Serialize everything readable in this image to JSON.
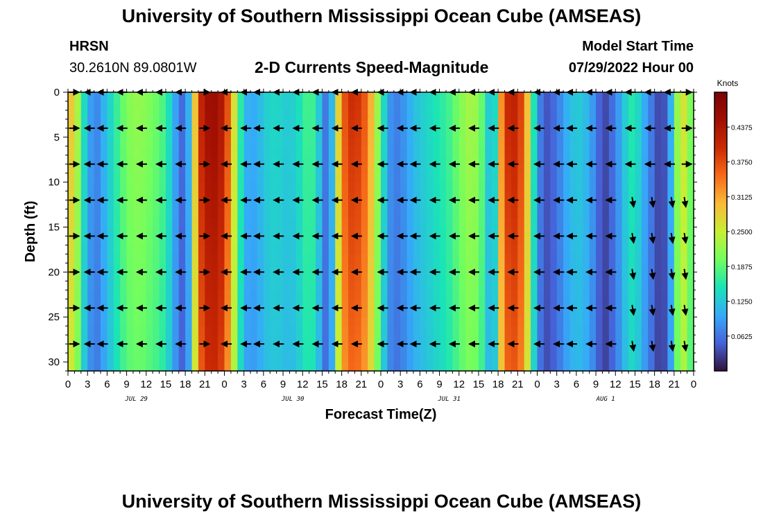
{
  "header": {
    "title": "University of Southern Mississippi Ocean Cube (AMSEAS)",
    "station": "HRSN",
    "coords": "30.2610N  89.0801W",
    "plot_title": "2-D Currents Speed-Magnitude",
    "model_start_label": "Model Start Time",
    "model_start_value": "07/29/2022 Hour 00"
  },
  "footer": {
    "title": "University of Southern Mississippi Ocean Cube (AMSEAS)"
  },
  "chart_data": {
    "type": "heatmap",
    "title": "2-D Currents Speed-Magnitude",
    "xlabel": "Forecast Time(Z)",
    "ylabel": "Depth (ft)",
    "xlim": [
      0,
      96
    ],
    "ylim": [
      31,
      0
    ],
    "x_ticks": [
      "0",
      "3",
      "6",
      "9",
      "12",
      "15",
      "18",
      "21",
      "0",
      "3",
      "6",
      "9",
      "12",
      "15",
      "18",
      "21",
      "0",
      "3",
      "6",
      "9",
      "12",
      "15",
      "18",
      "21",
      "0",
      "3",
      "6",
      "9",
      "12",
      "15",
      "18",
      "21",
      "0"
    ],
    "day_labels": [
      "JUL 29",
      "JUL 30",
      "JUL 31",
      "AUG 1"
    ],
    "day_label_hours": [
      10.5,
      34.5,
      58.5,
      82.5
    ],
    "y_ticks": [
      "0",
      "5",
      "10",
      "15",
      "20",
      "25",
      "30"
    ],
    "y_tick_values": [
      0,
      5,
      10,
      15,
      20,
      25,
      30
    ],
    "colorbar": {
      "unit": "Knots",
      "min": 0.0,
      "max": 0.5,
      "tick_labels": [
        "0.4375",
        "0.3750",
        "0.3125",
        "0.2500",
        "0.1875",
        "0.1250",
        "0.0625"
      ],
      "tick_values": [
        0.4375,
        0.375,
        0.3125,
        0.25,
        0.1875,
        0.125,
        0.0625
      ]
    },
    "speed_profile": {
      "hours": [
        0,
        1,
        2,
        3,
        4,
        5,
        6,
        7,
        8,
        9,
        10,
        11,
        12,
        13,
        14,
        15,
        16,
        17,
        18,
        19,
        20,
        21,
        22,
        23,
        24,
        25,
        26,
        27,
        28,
        29,
        30,
        31,
        32,
        33,
        34,
        35,
        36,
        37,
        38,
        39,
        40,
        41,
        42,
        43,
        44,
        45,
        46,
        47,
        48,
        49,
        50,
        51,
        52,
        53,
        54,
        55,
        56,
        57,
        58,
        59,
        60,
        61,
        62,
        63,
        64,
        65,
        66,
        67,
        68,
        69,
        70,
        71,
        72,
        73,
        74,
        75,
        76,
        77,
        78,
        79,
        80,
        81,
        82,
        83,
        84,
        85,
        86,
        87,
        88,
        89,
        90,
        91,
        92,
        93,
        94,
        95,
        96
      ],
      "knots": [
        0.3,
        0.26,
        0.16,
        0.1,
        0.07,
        0.1,
        0.13,
        0.16,
        0.19,
        0.21,
        0.22,
        0.22,
        0.21,
        0.2,
        0.19,
        0.16,
        0.11,
        0.06,
        0.05,
        0.25,
        0.4,
        0.45,
        0.46,
        0.45,
        0.4,
        0.3,
        0.18,
        0.11,
        0.1,
        0.11,
        0.13,
        0.14,
        0.14,
        0.13,
        0.13,
        0.14,
        0.17,
        0.18,
        0.15,
        0.07,
        0.06,
        0.25,
        0.36,
        0.4,
        0.4,
        0.38,
        0.33,
        0.25,
        0.16,
        0.09,
        0.07,
        0.08,
        0.1,
        0.12,
        0.13,
        0.14,
        0.15,
        0.16,
        0.17,
        0.19,
        0.21,
        0.23,
        0.23,
        0.21,
        0.15,
        0.08,
        0.3,
        0.4,
        0.42,
        0.4,
        0.34,
        0.18,
        0.08,
        0.04,
        0.05,
        0.07,
        0.1,
        0.12,
        0.13,
        0.12,
        0.1,
        0.06,
        0.03,
        0.05,
        0.08,
        0.12,
        0.16,
        0.15,
        0.11,
        0.08,
        0.04,
        0.03,
        0.07,
        0.2,
        0.28,
        0.22,
        0.18
      ]
    },
    "vector_depths": [
      0,
      4,
      8,
      12,
      16,
      20,
      24,
      28
    ],
    "vector_hours": [
      0,
      3,
      5,
      8,
      11,
      14,
      17,
      20,
      24,
      27,
      29,
      32,
      35,
      38,
      41,
      44,
      48,
      51,
      53,
      56,
      59,
      62,
      65,
      68,
      72,
      75,
      77,
      80,
      83,
      86,
      89,
      92,
      94
    ]
  }
}
